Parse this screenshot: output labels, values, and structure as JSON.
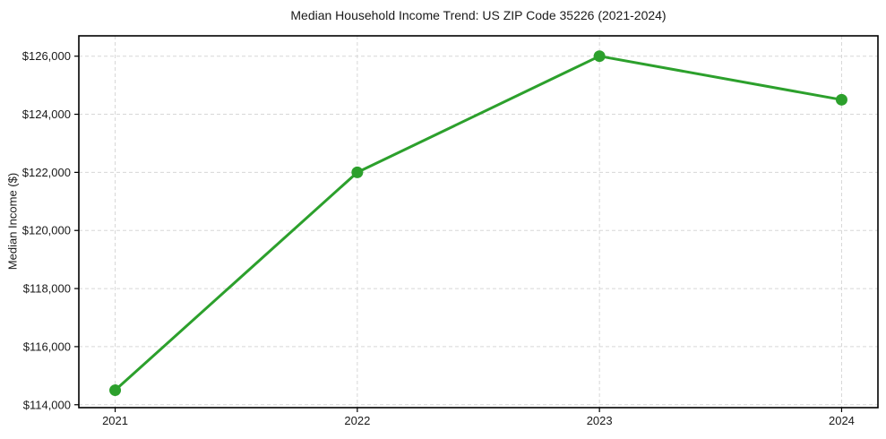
{
  "page": {
    "background_color": "#ffffff",
    "text_color": "#1a1a1a"
  },
  "chart_data": {
    "type": "line",
    "title": "Median Household Income Trend: US ZIP Code 35226 (2021-2024)",
    "xlabel": "",
    "ylabel": "Median Income ($)",
    "categories": [
      "2021",
      "2022",
      "2023",
      "2024"
    ],
    "values": [
      114500,
      122000,
      126000,
      124500
    ],
    "ytick_values": [
      114000,
      116000,
      118000,
      120000,
      122000,
      124000,
      126000
    ],
    "ytick_labels": [
      "$114,000",
      "$116,000",
      "$118,000",
      "$120,000",
      "$122,000",
      "$124,000",
      "$126,000"
    ],
    "ylim": [
      113900,
      126700
    ],
    "grid": "both-dashed",
    "legend_position": "none",
    "line_color": "#2ca02c",
    "marker": "circle",
    "marker_color": "#2ca02c",
    "grid_color": "#d7d7d7",
    "spine_color": "#000000"
  }
}
